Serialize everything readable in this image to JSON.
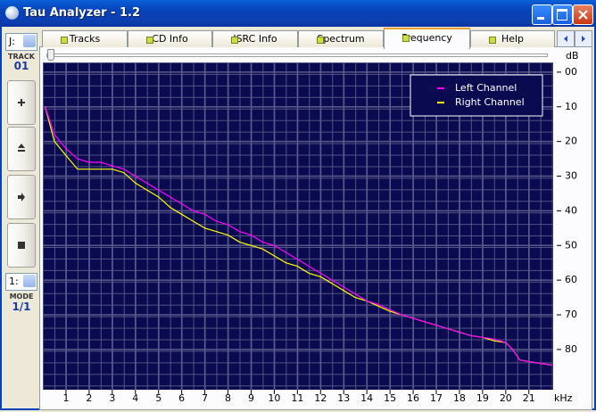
{
  "window": {
    "title": "Tau Analyzer - 1.2"
  },
  "sidebar": {
    "drive": "J:",
    "track_label": "TRACK",
    "track": "01",
    "mode_select": "1:",
    "mode_label": "MODE",
    "mode": "1/1"
  },
  "tabs": [
    "Tracks",
    "CD Info",
    "ISRC Info",
    "Spectrum",
    "Frequency",
    "Help"
  ],
  "active_tab": 4,
  "chart_data": {
    "type": "line",
    "x_label": "kHz",
    "y_label": "dB",
    "x": [
      0.1,
      0.5,
      1,
      1.5,
      2,
      2.5,
      3,
      3.5,
      4,
      4.5,
      5,
      5.5,
      6,
      6.5,
      7,
      7.5,
      8,
      8.5,
      9,
      9.5,
      10,
      10.5,
      11,
      11.5,
      12,
      12.5,
      13,
      13.5,
      14,
      14.5,
      15,
      15.5,
      16,
      16.5,
      17,
      17.5,
      18,
      18.5,
      19,
      19.5,
      20,
      20.3,
      20.6,
      21,
      21.5,
      22
    ],
    "series": [
      {
        "name": "Left Channel",
        "color": "#ff00ff",
        "values": [
          -10,
          -18,
          -22,
          -25,
          -26,
          -26,
          -27,
          -28,
          -30,
          -32,
          -34,
          -36,
          -38,
          -40,
          -41,
          -43,
          -44,
          -46,
          -47,
          -49,
          -50,
          -52,
          -54,
          -56,
          -58,
          -60,
          -62,
          -64,
          -66,
          -67,
          -68.5,
          -70,
          -71,
          -72,
          -73,
          -74,
          -75,
          -76,
          -76.5,
          -77,
          -78,
          -80,
          -83,
          -83.5,
          -84,
          -84.5
        ]
      },
      {
        "name": "Right Channel",
        "color": "#ffff00",
        "values": [
          -10,
          -20,
          -24,
          -28,
          -28,
          -28,
          -28,
          -29,
          -32,
          -34,
          -36,
          -39,
          -41,
          -43,
          -45,
          -46,
          -47,
          -49,
          -50,
          -51,
          -53,
          -55,
          -56,
          -58,
          -59,
          -61,
          -63,
          -65,
          -66,
          -67.5,
          -69,
          -70,
          -71,
          -72,
          -73,
          -74,
          -75,
          -76,
          -76.5,
          -77.5,
          -78,
          -80,
          -83,
          -83.5,
          -84,
          -84.5
        ]
      }
    ],
    "xlim": [
      0,
      22.05
    ],
    "ylim": [
      -91.6,
      2.8
    ],
    "xticks": [
      1,
      2,
      3,
      4,
      5,
      6,
      7,
      8,
      9,
      10,
      11,
      12,
      13,
      14,
      15,
      16,
      17,
      18,
      19,
      20,
      21
    ],
    "yticks": [
      {
        "value": 0,
        "label": "00"
      },
      {
        "value": -10,
        "label": "10"
      },
      {
        "value": -20,
        "label": "20"
      },
      {
        "value": -30,
        "label": "30"
      },
      {
        "value": -40,
        "label": "40"
      },
      {
        "value": -50,
        "label": "50"
      },
      {
        "value": -60,
        "label": "60"
      },
      {
        "value": -70,
        "label": "70"
      },
      {
        "value": -80,
        "label": "80"
      }
    ],
    "grid": true,
    "legend": "upper right",
    "background": "#0a0a50",
    "grid_color": "#5a5a8a"
  }
}
